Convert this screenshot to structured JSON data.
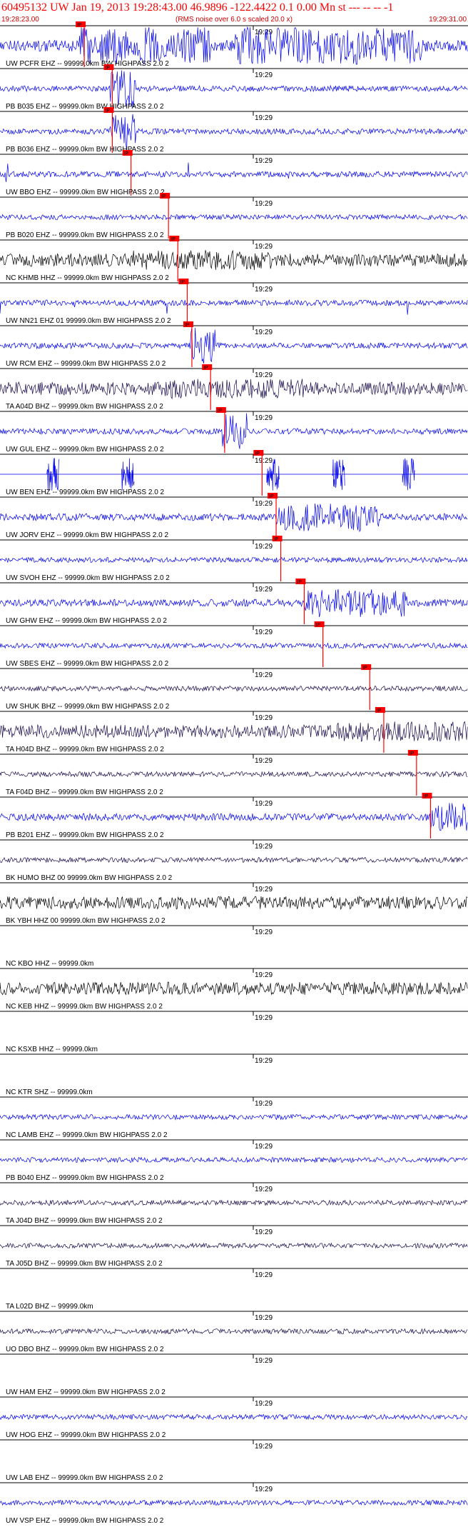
{
  "header": {
    "title": "60495132 UW Jan 19, 2013 19:28:43.00   46.9896 -122.4422  0.1 0.00 Mn st --- -- --  -1",
    "start_time": "19:28:23.00",
    "noise_note": "(RMS noise over 6.0 s scaled 20.0 x)",
    "end_time": "19:29:31.00",
    "minute_tick": "19:29"
  },
  "colors": {
    "title": "#ff0000",
    "trace_blue": "#0000ee",
    "trace_dark": "#1a0a4a",
    "trace_black": "#000000",
    "pick": "#ff0000",
    "panel_line": "#000000"
  },
  "pick_label": "IP",
  "traces": [
    {
      "label": "UW PCFR EHZ -- 99999.0km BW  HIGHPASS  2.0  2",
      "color": "blue",
      "pick": 0.18,
      "style": "big"
    },
    {
      "label": "PB B035 EHZ -- 99999.0km BW  HIGHPASS  2.0  2",
      "color": "blue",
      "pick": 0.24,
      "style": "burst"
    },
    {
      "label": "PB B036 EHZ -- 99999.0km BW  HIGHPASS  2.0  2",
      "color": "blue",
      "pick": 0.24,
      "style": "burst"
    },
    {
      "label": "UW BBO EHZ -- 99999.0km BW  HIGHPASS  2.0  2",
      "color": "blue",
      "pick": 0.28,
      "style": "spiky"
    },
    {
      "label": "PB B020 EHZ -- 99999.0km BW  HIGHPASS  2.0  2",
      "color": "blue",
      "pick": 0.36,
      "style": "quiet"
    },
    {
      "label": "NC KHMB HHZ -- 99999.0km BW  HIGHPASS  2.0  2",
      "color": "black",
      "pick": 0.38,
      "style": "noisy"
    },
    {
      "label": "UW NN21 EHZ 01 99999.0km BW  HIGHPASS  2.0  2",
      "color": "blue",
      "pick": 0.4,
      "style": "spiky"
    },
    {
      "label": "UW RCM EHZ -- 99999.0km BW  HIGHPASS  2.0  2",
      "color": "blue",
      "pick": 0.41,
      "style": "burst"
    },
    {
      "label": "TA A04D BHZ -- 99999.0km BW  HIGHPASS  2.0  2",
      "color": "dark",
      "pick": 0.45,
      "style": "noisy"
    },
    {
      "label": "UW GUL EHZ -- 99999.0km BW  HIGHPASS  2.0  2",
      "color": "blue",
      "pick": 0.48,
      "style": "burst"
    },
    {
      "label": "UW BEN EHZ -- 99999.0km BW  HIGHPASS  2.0  2",
      "color": "blue",
      "pick": 0.56,
      "style": "flat"
    },
    {
      "label": "UW JORV EHZ -- 99999.0km BW  HIGHPASS  2.0  2",
      "color": "blue",
      "pick": 0.59,
      "style": "late"
    },
    {
      "label": "UW SVOH EHZ -- 99999.0km BW  HIGHPASS  2.0  2",
      "color": "blue",
      "pick": 0.6,
      "style": "quiet"
    },
    {
      "label": "UW GHW EHZ -- 99999.0km BW  HIGHPASS  2.0  2",
      "color": "blue",
      "pick": 0.65,
      "style": "late"
    },
    {
      "label": "UW SBES EHZ -- 99999.0km BW  HIGHPASS  2.0  2",
      "color": "blue",
      "pick": 0.69,
      "style": "quiet"
    },
    {
      "label": "UW SHUK BHZ -- 99999.0km BW  HIGHPASS  2.0  2",
      "color": "dark",
      "pick": 0.79,
      "style": "quiet"
    },
    {
      "label": "TA H04D BHZ -- 99999.0km BW  HIGHPASS  2.0  2",
      "color": "dark",
      "pick": 0.82,
      "style": "noisy"
    },
    {
      "label": "TA F04D BHZ -- 99999.0km BW  HIGHPASS  2.0  2",
      "color": "dark",
      "pick": 0.89,
      "style": "quiet"
    },
    {
      "label": "PB B201 EHZ -- 99999.0km BW  HIGHPASS  2.0  2",
      "color": "blue",
      "pick": 0.92,
      "style": "late"
    },
    {
      "label": "BK HUMO BHZ 00 99999.0km BW  HIGHPASS  2.0  2",
      "color": "dark",
      "pick": null,
      "style": "quiet"
    },
    {
      "label": "BK YBH HHZ 00 99999.0km BW  HIGHPASS  2.0  2",
      "color": "black",
      "pick": null,
      "style": "noisy"
    },
    {
      "label": "NC KBO HHZ -- 99999.0km",
      "color": "black",
      "pick": null,
      "style": "empty"
    },
    {
      "label": "NC KEB HHZ -- 99999.0km BW  HIGHPASS  2.0  2",
      "color": "black",
      "pick": null,
      "style": "noisy"
    },
    {
      "label": "NC KSXB HHZ -- 99999.0km",
      "color": "black",
      "pick": null,
      "style": "empty"
    },
    {
      "label": "NC KTR SHZ -- 99999.0km",
      "color": "black",
      "pick": null,
      "style": "empty"
    },
    {
      "label": "NC LAMB EHZ -- 99999.0km BW  HIGHPASS  2.0  2",
      "color": "blue",
      "pick": null,
      "style": "quiet"
    },
    {
      "label": "PB B040 EHZ -- 99999.0km BW  HIGHPASS  2.0  2",
      "color": "blue",
      "pick": null,
      "style": "quiet"
    },
    {
      "label": "TA J04D BHZ -- 99999.0km BW  HIGHPASS  2.0  2",
      "color": "dark",
      "pick": null,
      "style": "quiet"
    },
    {
      "label": "TA J05D BHZ -- 99999.0km BW  HIGHPASS  2.0  2",
      "color": "dark",
      "pick": null,
      "style": "quiet"
    },
    {
      "label": "TA L02D BHZ -- 99999.0km",
      "color": "dark",
      "pick": null,
      "style": "empty"
    },
    {
      "label": "UO DBO BHZ -- 99999.0km BW  HIGHPASS  2.0  2",
      "color": "dark",
      "pick": null,
      "style": "quiet"
    },
    {
      "label": "UW HAM EHZ -- 99999.0km BW  HIGHPASS  2.0  2",
      "color": "blue",
      "pick": null,
      "style": "empty"
    },
    {
      "label": "UW HOG EHZ -- 99999.0km BW  HIGHPASS  2.0  2",
      "color": "blue",
      "pick": null,
      "style": "quiet"
    },
    {
      "label": "UW LAB EHZ -- 99999.0km BW  HIGHPASS  2.0  2",
      "color": "blue",
      "pick": null,
      "style": "empty"
    },
    {
      "label": "UW VSP EHZ -- 99999.0km BW  HIGHPASS  2.0  2",
      "color": "blue",
      "pick": null,
      "style": "quiet"
    }
  ]
}
